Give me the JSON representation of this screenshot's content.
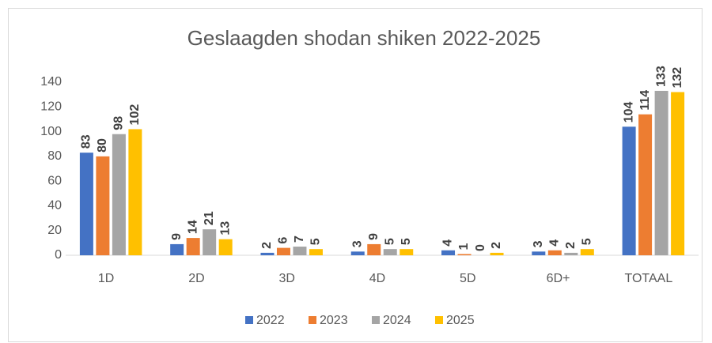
{
  "chart_data": {
    "type": "bar",
    "title": "Geslaagden shodan shiken 2022-2025",
    "categories": [
      "1D",
      "2D",
      "3D",
      "4D",
      "5D",
      "6D+",
      "TOTAAL"
    ],
    "series": [
      {
        "name": "2022",
        "color": "#4472c4",
        "values": [
          83,
          9,
          2,
          3,
          4,
          3,
          104
        ]
      },
      {
        "name": "2023",
        "color": "#ed7d31",
        "values": [
          80,
          14,
          6,
          9,
          1,
          4,
          114
        ]
      },
      {
        "name": "2024",
        "color": "#a5a5a5",
        "values": [
          98,
          21,
          7,
          5,
          0,
          2,
          133
        ]
      },
      {
        "name": "2025",
        "color": "#ffc000",
        "values": [
          102,
          13,
          5,
          5,
          2,
          5,
          132
        ]
      }
    ],
    "ylim": [
      0,
      140
    ],
    "yticks": [
      0,
      20,
      40,
      60,
      80,
      100,
      120,
      140
    ],
    "grid": false,
    "legend": "bottom"
  }
}
